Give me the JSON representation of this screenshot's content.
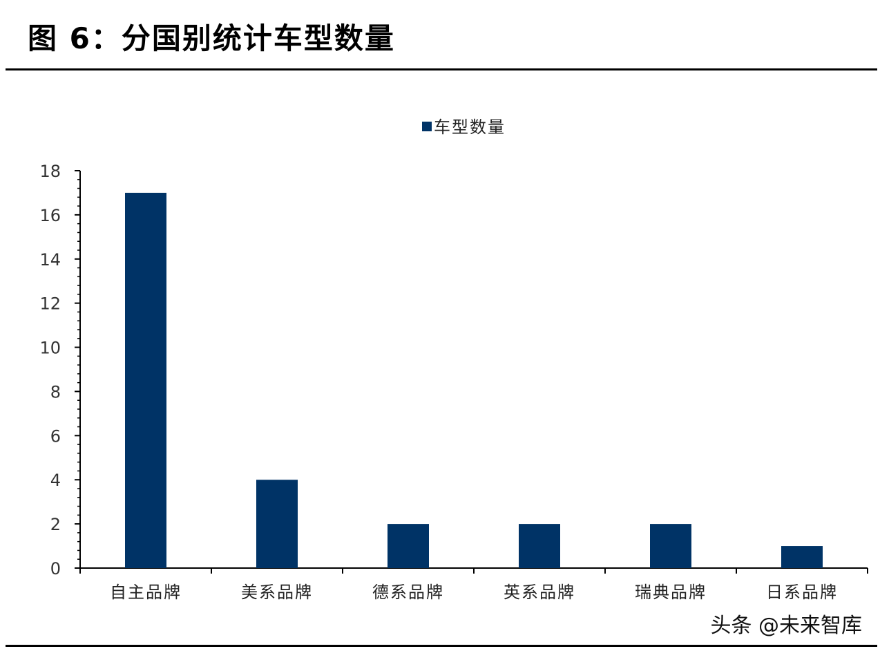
{
  "figure": {
    "title": "图 6：分国别统计车型数量"
  },
  "watermark": "头条 @未来智库",
  "colors": {
    "bar": "#003366",
    "axis": "#000000"
  },
  "chart_data": {
    "type": "bar",
    "title": "",
    "xlabel": "",
    "ylabel": "",
    "categories": [
      "自主品牌",
      "美系品牌",
      "德系品牌",
      "英系品牌",
      "瑞典品牌",
      "日系品牌"
    ],
    "series": [
      {
        "name": "车型数量",
        "values": [
          17,
          4,
          2,
          2,
          2,
          1
        ]
      }
    ],
    "ylim": [
      0,
      18
    ],
    "yticks": [
      0,
      2,
      4,
      6,
      8,
      10,
      12,
      14,
      16,
      18
    ],
    "grid": false,
    "legend": "top-center"
  }
}
